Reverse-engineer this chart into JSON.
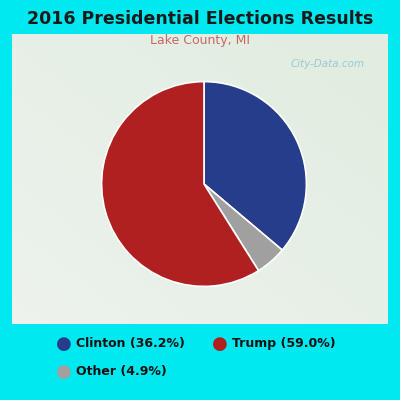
{
  "title": "2016 Presidential Elections Results",
  "subtitle": "Lake County, MI",
  "slices": [
    36.2,
    4.9,
    59.0
  ],
  "slice_order": [
    "Clinton",
    "Other",
    "Trump"
  ],
  "colors": [
    "#253d8a",
    "#a0a0a0",
    "#b02020"
  ],
  "legend_labels": [
    "Clinton (36.2%)",
    "Trump (59.0%)",
    "Other (4.9%)"
  ],
  "legend_colors": [
    "#253d8a",
    "#b02020",
    "#a0a0a0"
  ],
  "bg_outer": "#00e8f0",
  "bg_inner_top": "#f0f5e8",
  "bg_inner_bottom": "#e0ede0",
  "title_color": "#1a1a1a",
  "subtitle_color": "#cc6666",
  "watermark": "City-Data.com",
  "startangle": 90,
  "counterclock": false
}
